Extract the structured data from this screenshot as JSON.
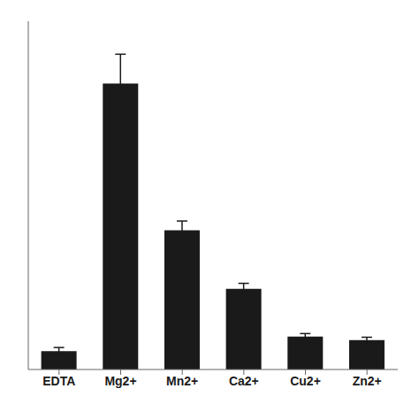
{
  "chart_data": {
    "type": "bar",
    "categories": [
      "EDTA",
      "Mg2+",
      "Mn2+",
      "Ca2+",
      "Cu2+",
      "Zn2+"
    ],
    "values": [
      0.05,
      0.78,
      0.38,
      0.22,
      0.09,
      0.08
    ],
    "errors": [
      0.01,
      0.08,
      0.025,
      0.015,
      0.008,
      0.008
    ],
    "color": "#1a1a1a",
    "ylim": [
      0,
      0.95
    ],
    "yticks": [
      0.0,
      0.1,
      0.2,
      0.3,
      0.4,
      0.5,
      0.6,
      0.7,
      0.8,
      0.9
    ],
    "grid": false,
    "tick_labels": "x"
  }
}
